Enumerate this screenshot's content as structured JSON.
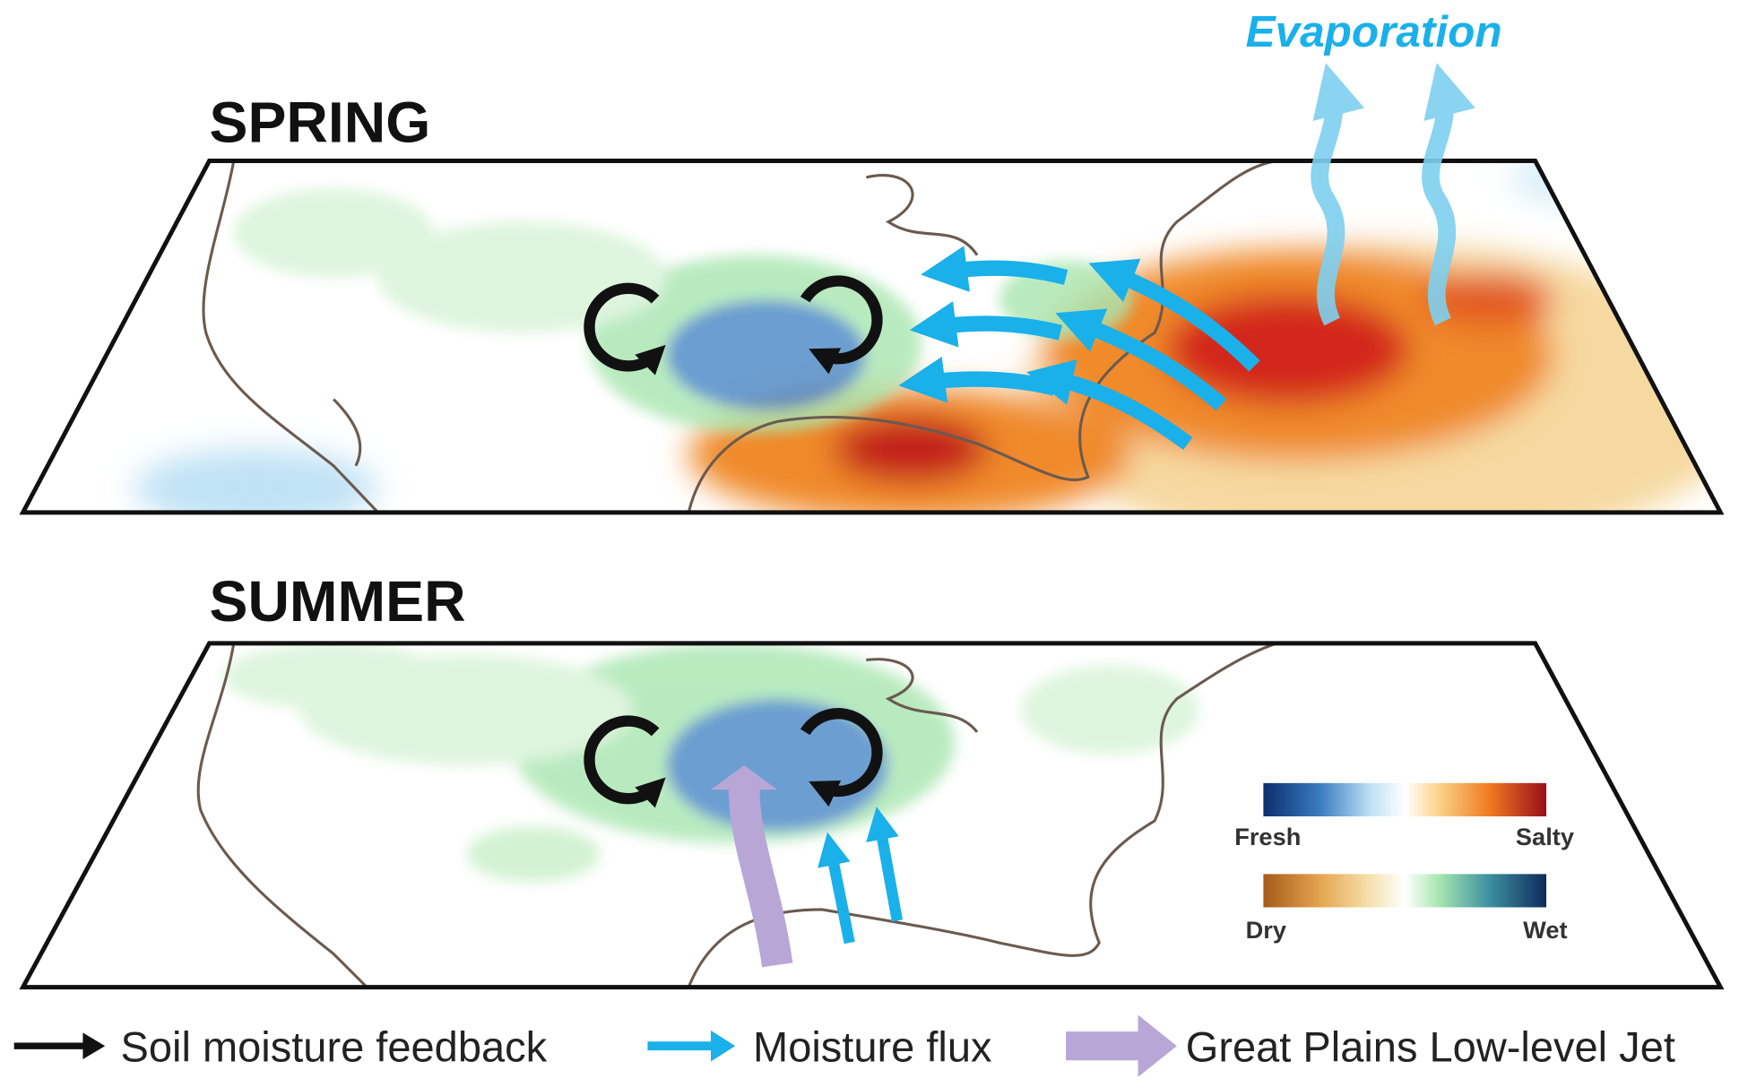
{
  "evaporation": "Evaporation",
  "panels": [
    {
      "title": "SPRING"
    },
    {
      "title": "SUMMER"
    }
  ],
  "colorbars": [
    {
      "left": "Fresh",
      "right": "Salty"
    },
    {
      "left": "Dry",
      "right": "Wet"
    }
  ],
  "legend": [
    {
      "label": "Soil moisture feedback"
    },
    {
      "label": "Moisture flux"
    },
    {
      "label": "Great Plains Low-level Jet"
    }
  ]
}
